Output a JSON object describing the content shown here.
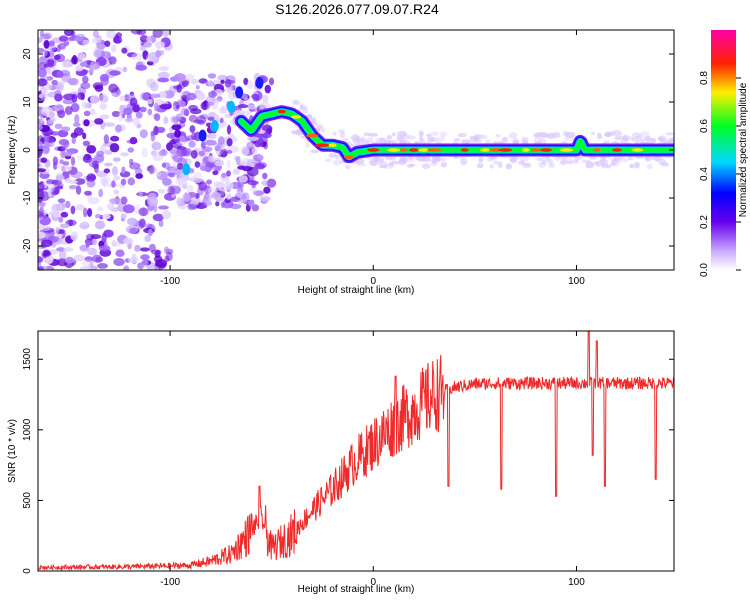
{
  "title": "S126.2026.077.09.07.R24",
  "chart_data": [
    {
      "type": "heatmap",
      "xlabel": "Height of straight line (km)",
      "ylabel": "Frequency (Hz)",
      "xlim": [
        -165,
        148
      ],
      "ylim": [
        -25,
        25
      ],
      "xticks": [
        -100,
        0,
        100
      ],
      "yticks": [
        -20,
        -10,
        0,
        10,
        20
      ],
      "colorbar": {
        "label": "Normalized spectral amplitude",
        "range": [
          0,
          1
        ],
        "ticks": [
          "0.0",
          "0.2",
          "0.4",
          "0.6",
          "0.8"
        ],
        "tick_values": [
          0.0,
          0.2,
          0.4,
          0.6,
          0.8
        ],
        "colormap": [
          "#ffffff",
          "#8800ff",
          "#0000ff",
          "#00ffff",
          "#00ff00",
          "#ffff00",
          "#ff0000",
          "#ff00ff"
        ]
      },
      "ridge": {
        "x": [
          -65,
          -60,
          -55,
          -50,
          -45,
          -40,
          -35,
          -30,
          -25,
          -20,
          -15,
          -12,
          -8,
          0,
          20,
          50,
          100,
          102,
          104,
          110,
          148
        ],
        "y": [
          6,
          4,
          7,
          7.5,
          8,
          7.5,
          6,
          3,
          1,
          1,
          0.5,
          -1.5,
          -0.5,
          0,
          0,
          0,
          0,
          2,
          0,
          0,
          0
        ]
      }
    },
    {
      "type": "line",
      "xlabel": "Height of straight line (km)",
      "ylabel": "SNR (10 * v/v)",
      "xlim": [
        -165,
        148
      ],
      "ylim": [
        0,
        1700
      ],
      "xticks": [
        -100,
        0,
        100
      ],
      "yticks": [
        0,
        500,
        1000,
        1500
      ],
      "color": "#ee2a2a",
      "trend": {
        "x": [
          -165,
          -120,
          -90,
          -80,
          -70,
          -62,
          -55,
          -50,
          -40,
          -30,
          -20,
          -10,
          0,
          10,
          20,
          30,
          40,
          50,
          60,
          80,
          100,
          120,
          148
        ],
        "y": [
          25,
          30,
          40,
          70,
          120,
          250,
          380,
          160,
          260,
          430,
          580,
          760,
          900,
          1030,
          1140,
          1250,
          1300,
          1325,
          1330,
          1330,
          1330,
          1330,
          1330
        ]
      },
      "spikes": [
        {
          "x": -56,
          "y": 600
        },
        {
          "x": 11,
          "y": 1380
        },
        {
          "x": 37,
          "y": 600
        },
        {
          "x": 63,
          "y": 580
        },
        {
          "x": 90,
          "y": 530
        },
        {
          "x": 106,
          "y": 1700
        },
        {
          "x": 108,
          "y": 820
        },
        {
          "x": 110,
          "y": 1630
        },
        {
          "x": 114,
          "y": 600
        },
        {
          "x": 139,
          "y": 650
        }
      ]
    }
  ]
}
